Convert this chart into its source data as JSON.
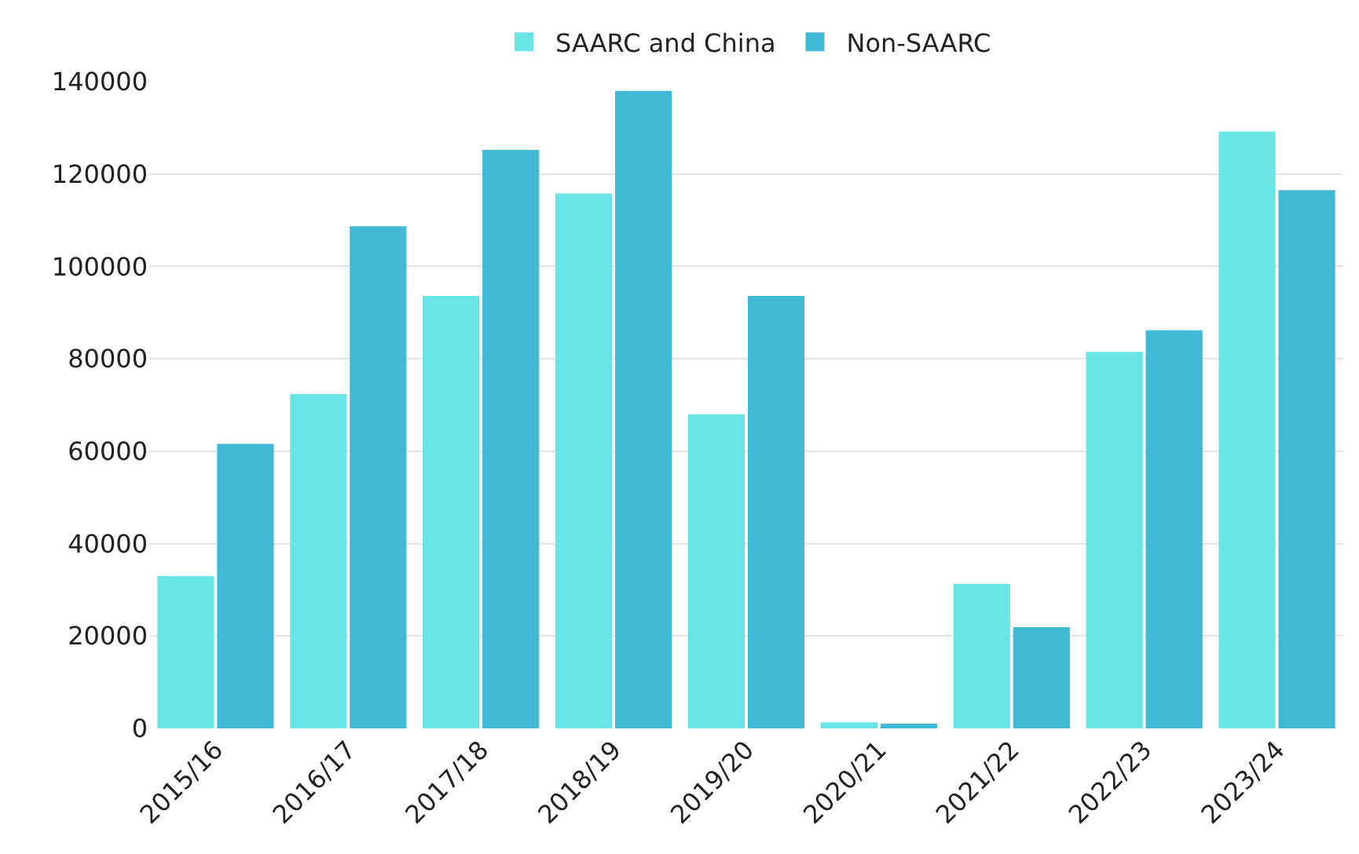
{
  "chart_data": {
    "type": "bar",
    "categories": [
      "2015/16",
      "2016/17",
      "2017/18",
      "2018/19",
      "2019/20",
      "2020/21",
      "2021/22",
      "2022/23",
      "2023/24"
    ],
    "series": [
      {
        "name": "SAARC and China",
        "color": "#69e3e6",
        "values": [
          33000,
          72400,
          93600,
          115800,
          68000,
          1300,
          31300,
          81500,
          129200
        ]
      },
      {
        "name": "Non-SAARC",
        "color": "#41b8d5",
        "values": [
          61600,
          108700,
          125200,
          138000,
          93600,
          1000,
          21900,
          86200,
          116500
        ]
      }
    ],
    "ylim": [
      0,
      140000
    ],
    "yticks": [
      0,
      20000,
      40000,
      60000,
      80000,
      100000,
      120000,
      140000
    ],
    "grid": "y",
    "legend": "top"
  }
}
